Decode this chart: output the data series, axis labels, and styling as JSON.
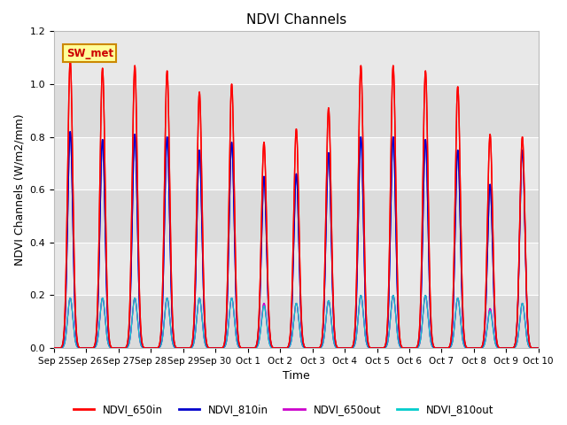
{
  "title": "NDVI Channels",
  "xlabel": "Time",
  "ylabel": "NDVI Channels (W/m2/mm)",
  "ylim": [
    0,
    1.2
  ],
  "bg_color": "#e8e8e8",
  "legend_labels": [
    "NDVI_650in",
    "NDVI_810in",
    "NDVI_650out",
    "NDVI_810out"
  ],
  "legend_colors": [
    "#ff0000",
    "#0000cc",
    "#cc00cc",
    "#00cccc"
  ],
  "annotation_text": "SW_met",
  "annotation_bg": "#ffff99",
  "annotation_border": "#cc8800",
  "tick_labels": [
    "Sep 25",
    "Sep 26",
    "Sep 27",
    "Sep 28",
    "Sep 29",
    "Sep 30",
    "Oct 1",
    "Oct 2",
    "Oct 3",
    "Oct 4",
    "Oct 5",
    "Oct 6",
    "Oct 7",
    "Oct 8",
    "Oct 9",
    "Oct 10"
  ],
  "num_peaks": 15,
  "peaks_650in": [
    1.09,
    1.06,
    1.07,
    1.05,
    0.97,
    1.0,
    0.78,
    0.83,
    0.91,
    1.07,
    1.07,
    1.05,
    0.99,
    0.81,
    0.8
  ],
  "peaks_810in": [
    0.82,
    0.79,
    0.81,
    0.8,
    0.75,
    0.78,
    0.65,
    0.66,
    0.74,
    0.8,
    0.8,
    0.79,
    0.75,
    0.62,
    0.75
  ],
  "peaks_650out": [
    0.19,
    0.19,
    0.19,
    0.19,
    0.19,
    0.19,
    0.17,
    0.17,
    0.18,
    0.2,
    0.2,
    0.2,
    0.19,
    0.15,
    0.17
  ],
  "peaks_810out": [
    0.19,
    0.19,
    0.19,
    0.19,
    0.19,
    0.19,
    0.16,
    0.17,
    0.18,
    0.2,
    0.2,
    0.2,
    0.19,
    0.14,
    0.17
  ],
  "band_colors": [
    "#e0e0e0",
    "#d0d0d0"
  ],
  "grid_color": "#ffffff",
  "figsize": [
    6.4,
    4.8
  ],
  "dpi": 100
}
